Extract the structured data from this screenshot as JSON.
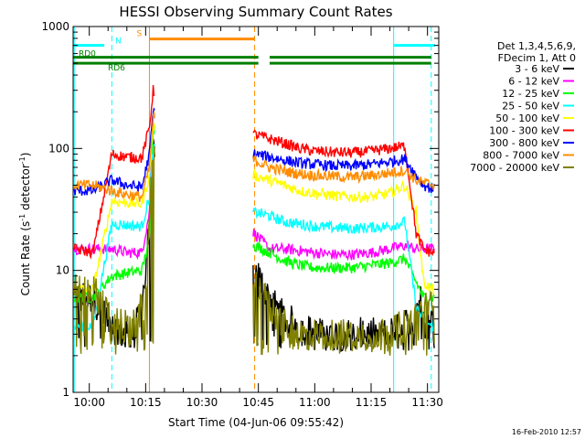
{
  "chart_data": {
    "type": "line",
    "title": "HESSI Observing Summary Count Rates",
    "xlabel": "Start Time (04-Jun-06 09:55:42)",
    "ylabel": "Count Rate (s⁻¹ detector⁻¹)",
    "ylabel_parts": [
      "Count Rate (s",
      "-1",
      " detector",
      "-1",
      ")"
    ],
    "yscale": "log",
    "ylim": [
      1,
      1000
    ],
    "xlim": [
      "09:55:42",
      "11:33:00"
    ],
    "x_ticks": [
      "10:00",
      "10:15",
      "10:30",
      "10:45",
      "11:00",
      "11:15",
      "11:30"
    ],
    "y_ticks": [
      "1",
      "10",
      "100",
      "1000"
    ],
    "legend_title": [
      "Det 1,3,4,5,6,9,",
      "FDecim 1, Att 0"
    ],
    "legend_position": "right",
    "timestamp": "16-Feb-2010 12:57",
    "series": [
      {
        "name": "3 - 6 keV",
        "color": "#000000",
        "x": [
          "09:56",
          "10:01",
          "10:06",
          "10:09",
          "10:12",
          "10:15",
          "10:17",
          "10:44",
          "10:48",
          "10:52",
          "10:56",
          "11:00",
          "11:05",
          "11:10",
          "11:15",
          "11:20",
          "11:24",
          "11:27",
          "11:29",
          "11:31",
          "11:32"
        ],
        "values": [
          6,
          6,
          3.5,
          3,
          3,
          8,
          100,
          10,
          6,
          4,
          3.5,
          3,
          3,
          3,
          3,
          3,
          3.5,
          5,
          6,
          4,
          3.5
        ]
      },
      {
        "name": "6 - 12 keV",
        "color": "#ff00ff",
        "x": [
          "09:56",
          "10:01",
          "10:06",
          "10:10",
          "10:14",
          "10:16",
          "10:17",
          "10:44",
          "10:48",
          "10:52",
          "10:56",
          "11:00",
          "11:05",
          "11:10",
          "11:15",
          "11:20",
          "11:24",
          "11:27",
          "11:29",
          "11:31",
          "11:32"
        ],
        "values": [
          15,
          15,
          15,
          14,
          14,
          30,
          200,
          20,
          15,
          15,
          14.5,
          14,
          13.5,
          13.5,
          14,
          15,
          16,
          15,
          15,
          15,
          15
        ]
      },
      {
        "name": "12 - 25 keV",
        "color": "#00ff00",
        "x": [
          "09:56",
          "10:01",
          "10:06",
          "10:10",
          "10:14",
          "10:16",
          "10:17",
          "10:44",
          "10:48",
          "10:52",
          "10:56",
          "11:00",
          "11:05",
          "11:10",
          "11:15",
          "11:20",
          "11:24",
          "11:27",
          "11:29",
          "11:31",
          "11:32"
        ],
        "values": [
          6,
          6,
          9,
          9.5,
          10,
          18,
          150,
          16,
          14,
          12,
          11,
          10.5,
          10.5,
          10.5,
          11,
          11.5,
          12.5,
          8,
          6,
          6,
          6
        ]
      },
      {
        "name": "25 - 50 keV",
        "color": "#00ffff",
        "x": [
          "09:56",
          "10:01",
          "10:06",
          "10:10",
          "10:14",
          "10:16",
          "10:17",
          "10:44",
          "10:48",
          "10:52",
          "10:56",
          "11:00",
          "11:05",
          "11:10",
          "11:15",
          "11:20",
          "11:24",
          "11:27",
          "11:29",
          "11:31",
          "11:32"
        ],
        "values": [
          3.5,
          3.5,
          24,
          23.5,
          23,
          40,
          100,
          30,
          28,
          25,
          24,
          23,
          22.5,
          22,
          22.5,
          23,
          25,
          5,
          4,
          3.5,
          3.5
        ]
      },
      {
        "name": "50 - 100 keV",
        "color": "#ffff00",
        "x": [
          "09:56",
          "10:01",
          "10:06",
          "10:10",
          "10:14",
          "10:16",
          "10:17",
          "10:44",
          "10:48",
          "10:52",
          "10:56",
          "11:00",
          "11:05",
          "11:10",
          "11:15",
          "11:20",
          "11:24",
          "11:27",
          "11:29",
          "11:31",
          "11:32"
        ],
        "values": [
          7,
          7,
          37,
          36,
          35,
          60,
          150,
          60,
          55,
          50,
          45,
          43,
          41,
          40,
          40,
          43,
          50,
          30,
          8,
          7,
          7
        ]
      },
      {
        "name": "100 - 300 keV",
        "color": "#ff0000",
        "x": [
          "09:56",
          "10:01",
          "10:06",
          "10:10",
          "10:14",
          "10:16",
          "10:17",
          "10:44",
          "10:48",
          "10:52",
          "10:56",
          "11:00",
          "11:05",
          "11:10",
          "11:15",
          "11:20",
          "11:24",
          "11:27",
          "11:29",
          "11:31",
          "11:32"
        ],
        "values": [
          15,
          14,
          90,
          85,
          84,
          150,
          300,
          130,
          120,
          110,
          100,
          95,
          93,
          92,
          95,
          100,
          105,
          20,
          15,
          14,
          14
        ]
      },
      {
        "name": "300 - 800 keV",
        "color": "#0000ff",
        "x": [
          "09:56",
          "10:01",
          "10:06",
          "10:10",
          "10:14",
          "10:16",
          "10:17",
          "10:44",
          "10:48",
          "10:52",
          "10:56",
          "11:00",
          "11:05",
          "11:10",
          "11:15",
          "11:20",
          "11:24",
          "11:27",
          "11:29",
          "11:31",
          "11:32"
        ],
        "values": [
          45,
          45,
          55,
          50,
          48,
          90,
          200,
          90,
          85,
          80,
          76,
          74,
          72,
          72,
          74,
          78,
          82,
          60,
          50,
          47,
          46
        ]
      },
      {
        "name": "800 - 7000 keV",
        "color": "#ff8c00",
        "x": [
          "09:56",
          "10:01",
          "10:06",
          "10:10",
          "10:14",
          "10:16",
          "10:17",
          "10:44",
          "10:48",
          "10:52",
          "10:56",
          "11:00",
          "11:05",
          "11:10",
          "11:15",
          "11:20",
          "11:24",
          "11:27",
          "11:29",
          "11:31",
          "11:32"
        ],
        "values": [
          50,
          50,
          45,
          42,
          40,
          70,
          180,
          80,
          70,
          65,
          62,
          60,
          59,
          58,
          60,
          63,
          66,
          55,
          52,
          51,
          50
        ]
      },
      {
        "name": "7000 - 20000 keV",
        "color": "#808000",
        "x": [
          "09:56",
          "10:01",
          "10:06",
          "10:09",
          "10:12",
          "10:15",
          "10:17",
          "10:44",
          "10:48",
          "10:52",
          "10:56",
          "11:00",
          "11:05",
          "11:10",
          "11:15",
          "11:20",
          "11:24",
          "11:27",
          "11:29",
          "11:31",
          "11:32"
        ],
        "values": [
          7,
          7,
          4,
          3.5,
          3.5,
          6,
          100,
          8,
          5,
          3.5,
          3,
          3,
          3,
          3,
          3,
          3.2,
          3.5,
          4,
          5,
          5,
          5
        ]
      }
    ],
    "flag_bars": [
      {
        "label": "N",
        "color": "#00ffff",
        "y": 700,
        "segments": [
          [
            "09:55:42",
            "10:04"
          ],
          [
            "11:21",
            "11:32"
          ]
        ]
      },
      {
        "label": "S",
        "color": "#ff8c00",
        "y": 790,
        "segments": [
          [
            "10:16",
            "10:44"
          ]
        ]
      },
      {
        "label": "RD0",
        "color": "#008000",
        "y": 560,
        "segments": [
          [
            "09:55:42",
            "10:45"
          ],
          [
            "10:48",
            "11:31"
          ]
        ]
      },
      {
        "label": "RD6",
        "color": "#008000",
        "y": 500,
        "segments": [
          [
            "09:55:42",
            "10:45"
          ],
          [
            "10:48",
            "11:31"
          ]
        ]
      }
    ],
    "vertical_markers": [
      {
        "time": "09:56",
        "color": "#00ffff",
        "style": "solid"
      },
      {
        "time": "10:06",
        "color": "#00ffff",
        "style": "dashed"
      },
      {
        "time": "10:16",
        "color": "#ff8c00",
        "style": "solid"
      },
      {
        "time": "10:44",
        "color": "#ff8c00",
        "style": "dashed"
      },
      {
        "time": "11:21",
        "color": "#00ffff",
        "style": "solid"
      },
      {
        "time": "11:31",
        "color": "#00ffff",
        "style": "dashed"
      }
    ]
  }
}
